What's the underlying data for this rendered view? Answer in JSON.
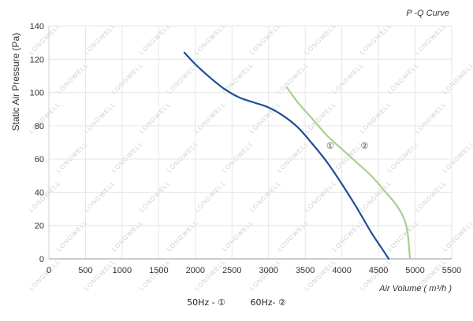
{
  "chart_data": {
    "type": "line",
    "title": "P -Q Curve",
    "xlabel": "Air Volume ( m³/h )",
    "ylabel": "Static Air Pressure  (Pa)",
    "xlim": [
      0,
      5500
    ],
    "ylim": [
      0,
      140
    ],
    "xticks": [
      0,
      500,
      1000,
      1500,
      2000,
      2500,
      3000,
      3500,
      4000,
      4500,
      5000,
      5500
    ],
    "yticks": [
      0,
      20,
      40,
      60,
      80,
      100,
      120,
      140
    ],
    "grid": true,
    "series": [
      {
        "name": "50Hz - ①",
        "marker_label": "①",
        "color": "#1f4e96",
        "x": [
          1850,
          2000,
          2200,
          2400,
          2600,
          2800,
          3000,
          3200,
          3400,
          3600,
          3800,
          4000,
          4200,
          4400,
          4550,
          4640
        ],
        "y": [
          124,
          117,
          109,
          102,
          97,
          94,
          91,
          86,
          79,
          69,
          58,
          45,
          31,
          16,
          6,
          0
        ]
      },
      {
        "name": "60Hz- ②",
        "marker_label": "②",
        "color": "#a8d08d",
        "x": [
          3250,
          3400,
          3600,
          3800,
          4000,
          4200,
          4400,
          4600,
          4750,
          4850,
          4900,
          4930
        ],
        "y": [
          103,
          94,
          84,
          74,
          66,
          58,
          50,
          40,
          32,
          24,
          15,
          0
        ]
      }
    ],
    "legend": [
      "50Hz - ①",
      "60Hz- ②"
    ],
    "legend_position": "bottom-center"
  }
}
